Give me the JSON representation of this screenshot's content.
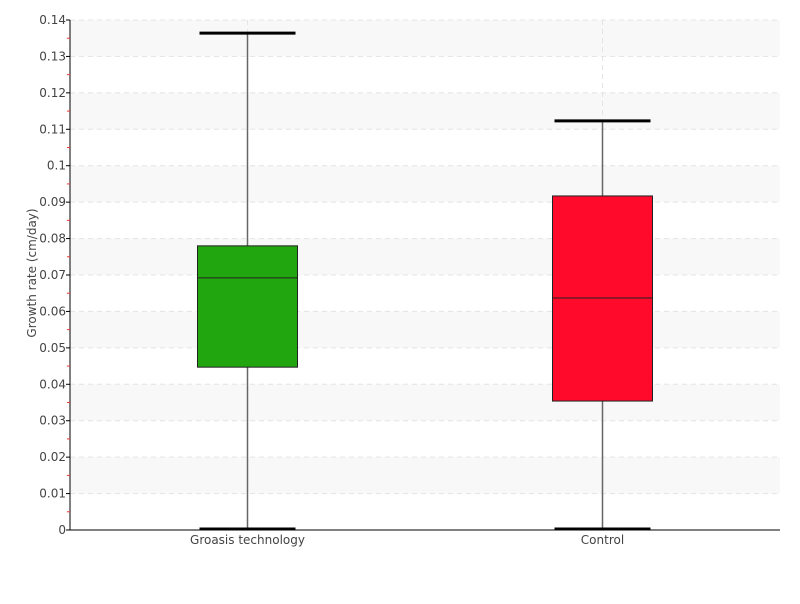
{
  "chart_data": {
    "type": "boxplot",
    "title": "",
    "xlabel": "",
    "ylabel": "Growth rate (cm/day)",
    "ylim": [
      0,
      0.14
    ],
    "yticks": [
      0,
      0.01,
      0.02,
      0.03,
      0.04,
      0.05,
      0.06,
      0.07,
      0.08,
      0.09,
      0.1,
      0.11,
      0.12,
      0.13,
      0.14
    ],
    "ytick_labels": [
      "0",
      "0.01",
      "0.02",
      "0.03",
      "0.04",
      "0.05",
      "0.06",
      "0.07",
      "0.08",
      "0.09",
      "0.1",
      "0.11",
      "0.12",
      "0.13",
      "0.14"
    ],
    "grid": true,
    "alternating_bands": true,
    "categories": [
      "Groasis technology",
      "Control"
    ],
    "boxes": [
      {
        "category": "Groasis technology",
        "min": 0.0,
        "q1": 0.0447,
        "median": 0.0692,
        "q3": 0.078,
        "max": 0.1364,
        "color": "#22a610"
      },
      {
        "category": "Control",
        "min": 0.0,
        "q1": 0.0354,
        "median": 0.0637,
        "q3": 0.0917,
        "max": 0.1123,
        "color": "#ff0a2a"
      }
    ]
  }
}
